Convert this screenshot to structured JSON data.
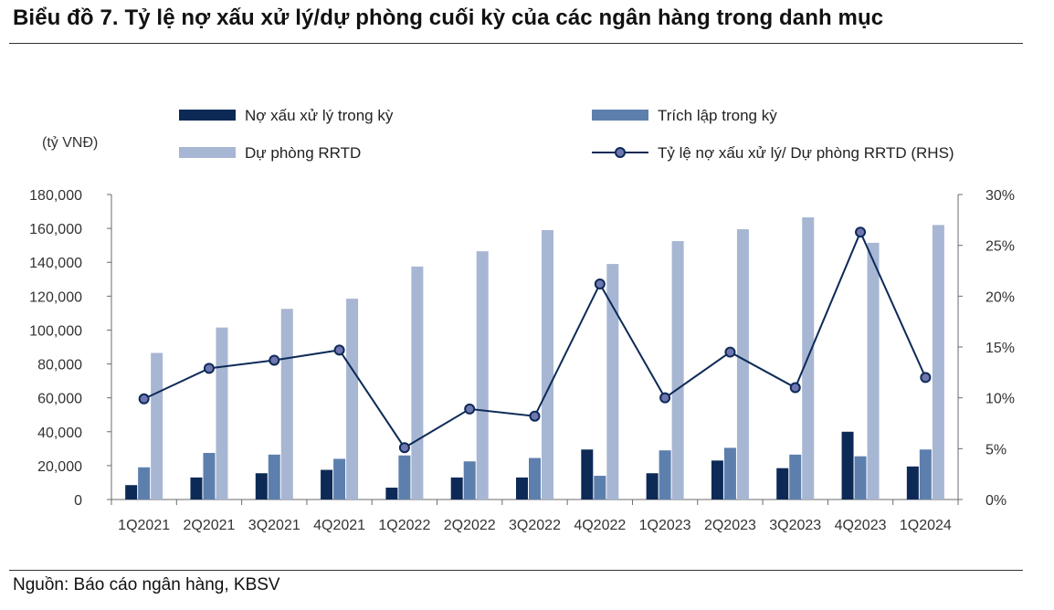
{
  "title": "Biểu đồ 7. Tỷ lệ nợ xấu xử lý/dự phòng cuối kỳ của các ngân hàng trong danh mục",
  "source": "Nguồn: Báo cáo ngân hàng, KBSV",
  "colors": {
    "bad_debt": "#0d2a57",
    "provision_charge": "#5d7fad",
    "reserve": "#a7b6d3",
    "ratio_line": "#0d2a57",
    "ratio_marker": "#6f76b0"
  },
  "chart_data": {
    "type": "bar",
    "combo_line": true,
    "y_left_label": "(tỷ VNĐ)",
    "ylim_left": [
      0,
      180000
    ],
    "yticks_left": [
      "0",
      "20,000",
      "40,000",
      "60,000",
      "80,000",
      "100,000",
      "120,000",
      "140,000",
      "160,000",
      "180,000"
    ],
    "ylim_right": [
      0,
      30
    ],
    "yticks_right": [
      "0%",
      "5%",
      "10%",
      "15%",
      "20%",
      "25%",
      "30%"
    ],
    "categories": [
      "1Q2021",
      "2Q2021",
      "3Q2021",
      "4Q2021",
      "1Q2022",
      "2Q2022",
      "3Q2022",
      "4Q2022",
      "1Q2023",
      "2Q2023",
      "3Q2023",
      "4Q2023",
      "1Q2024"
    ],
    "series": [
      {
        "name": "Nợ xấu xử lý trong  kỳ",
        "kind": "bar",
        "axis": "left",
        "values": [
          8500,
          13000,
          15500,
          17500,
          7000,
          13000,
          13000,
          29500,
          15500,
          23000,
          18500,
          40000,
          19500
        ]
      },
      {
        "name": "Trích lập trong kỳ",
        "kind": "bar",
        "axis": "left",
        "values": [
          19000,
          27500,
          26500,
          24000,
          26000,
          22500,
          24500,
          14000,
          29000,
          30500,
          26500,
          25500,
          29500
        ]
      },
      {
        "name": "Dự phòng RRTD",
        "kind": "bar",
        "axis": "left",
        "values": [
          86500,
          101500,
          112500,
          118500,
          137500,
          146500,
          159000,
          139000,
          152500,
          159500,
          166500,
          151500,
          162000
        ]
      },
      {
        "name": "Tỷ lệ nợ xấu xử lý/ Dự phòng RRTD (RHS)",
        "kind": "line",
        "axis": "right",
        "values": [
          9.9,
          12.9,
          13.7,
          14.7,
          5.1,
          8.9,
          8.2,
          21.2,
          10.0,
          14.5,
          11.0,
          26.3,
          12.0
        ]
      }
    ],
    "grid": false,
    "legend_position": "top"
  }
}
